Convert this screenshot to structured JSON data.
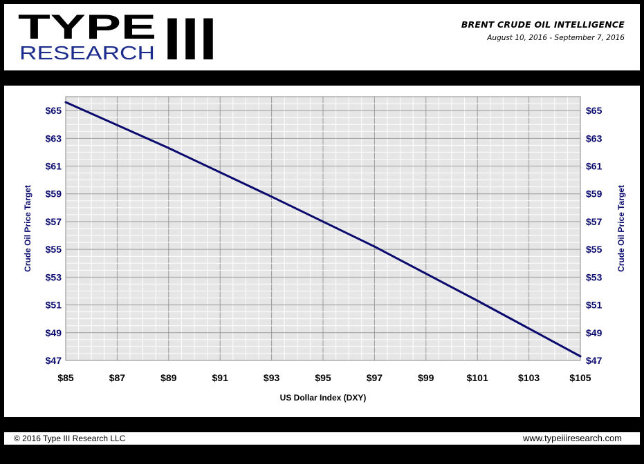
{
  "header": {
    "logo_word": "TYPE",
    "logo_numeral": "III",
    "logo_sub": "RESEARCH",
    "title": "BRENT CRUDE OIL  INTELLIGENCE",
    "dates": "August 10, 2016 - September 7, 2016"
  },
  "footer": {
    "copyright": "© 2016 Type III Research LLC",
    "website": "www.typeiiiresearch.com"
  },
  "colors": {
    "line": "#0a0a6e",
    "tick_label": "#0a0a6e",
    "plot_bg": "#e6e6e6",
    "grid": "#ffffff",
    "frame": "#000000"
  },
  "chart_data": {
    "type": "line",
    "title": "",
    "xlabel": "US Dollar Index (DXY)",
    "ylabel": "Crude Oil Price Target",
    "ylabel_right": "Crude Oil Price Target",
    "xlim": [
      85,
      105
    ],
    "ylim": [
      47,
      66
    ],
    "x_ticks": [
      85,
      87,
      89,
      91,
      93,
      95,
      97,
      99,
      101,
      103,
      105
    ],
    "x_tick_labels": [
      "$85",
      "$87",
      "$89",
      "$91",
      "$93",
      "$95",
      "$97",
      "$99",
      "$101",
      "$103",
      "$105"
    ],
    "y_ticks": [
      47,
      49,
      51,
      53,
      55,
      57,
      59,
      61,
      63,
      65
    ],
    "y_tick_labels": [
      "$47",
      "$49",
      "$51",
      "$53",
      "$55",
      "$57",
      "$59",
      "$61",
      "$63",
      "$65"
    ],
    "grid": true,
    "series": [
      {
        "values": [
          {
            "x": 85,
            "y": 65.6
          },
          {
            "x": 89,
            "y": 62.3
          },
          {
            "x": 93,
            "y": 58.8
          },
          {
            "x": 97,
            "y": 55.2
          },
          {
            "x": 101,
            "y": 51.3
          },
          {
            "x": 105,
            "y": 47.3
          }
        ]
      }
    ]
  }
}
